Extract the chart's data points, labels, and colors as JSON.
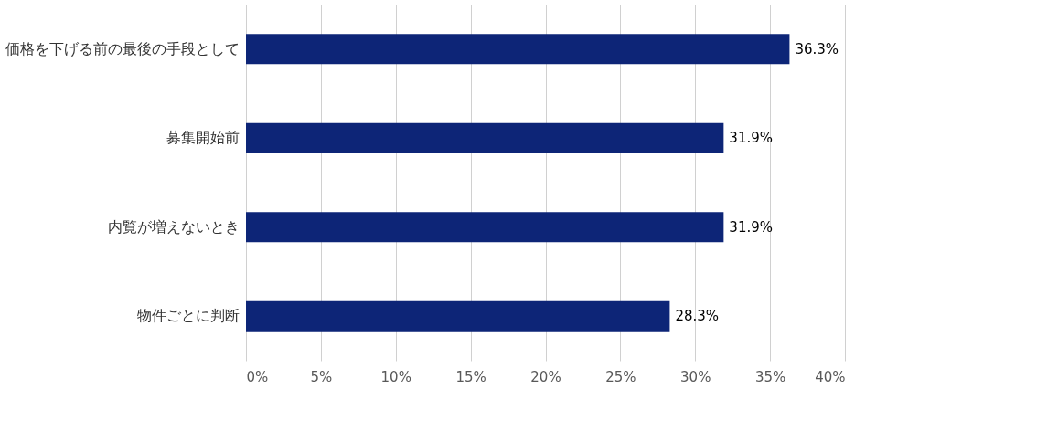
{
  "chart_data": {
    "type": "bar",
    "orientation": "horizontal",
    "categories": [
      "価格を下げる前の最後の手段として",
      "募集開始前",
      "内覧が増えないとき",
      "物件ごとに判断"
    ],
    "values": [
      36.3,
      31.9,
      31.9,
      28.3
    ],
    "value_labels": [
      "36.3%",
      "31.9%",
      "31.9%",
      "28.3%"
    ],
    "color": "#0d2577",
    "xlim": [
      0,
      40
    ],
    "xticks": [
      {
        "value": 0,
        "label": "0%"
      },
      {
        "value": 5,
        "label": "5%"
      },
      {
        "value": 10,
        "label": "10%"
      },
      {
        "value": 15,
        "label": "15%"
      },
      {
        "value": 20,
        "label": "20%"
      },
      {
        "value": 25,
        "label": "25%"
      },
      {
        "value": 30,
        "label": "30%"
      },
      {
        "value": 35,
        "label": "35%"
      },
      {
        "value": 40,
        "label": "40%"
      }
    ],
    "grid": "x"
  }
}
